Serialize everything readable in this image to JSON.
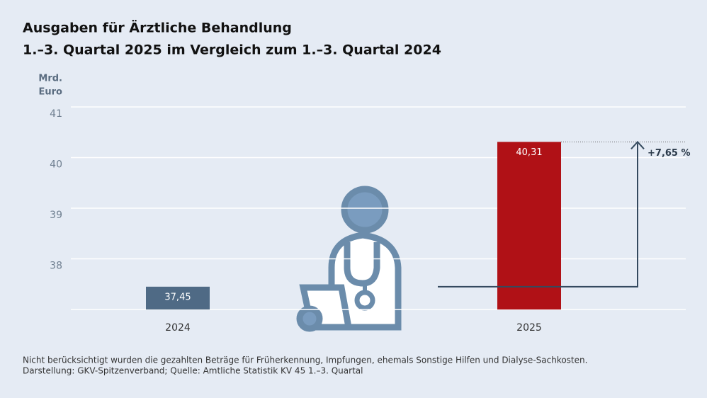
{
  "chart_data": {
    "type": "bar",
    "title": "Ausgaben für Ärztliche Behandlung",
    "subtitle": "1.–3. Quartal 2025 im Vergleich zum 1.–3. Quartal 2024",
    "y_label": [
      "Mrd.",
      "Euro"
    ],
    "categories": [
      "2024",
      "2025"
    ],
    "values": [
      37.45,
      40.31
    ],
    "value_labels": [
      "37,45",
      "40,31"
    ],
    "colors": [
      "#4f6a85",
      "#b01116"
    ],
    "ylim": [
      37,
      41
    ],
    "yticks": [
      38,
      39,
      40,
      41
    ],
    "grid": true,
    "annotation": "+7,65 %",
    "notes": [
      "Nicht berücksichtigt wurden die gezahlten Beträge für Früherkennung, Impfungen, ehemals Sonstige Hilfen und Dialyse-Sachkosten.",
      "Darstellung: GKV-Spitzenverband; Quelle: Amtliche Statistik KV 45 1.–3. Quartal"
    ]
  }
}
